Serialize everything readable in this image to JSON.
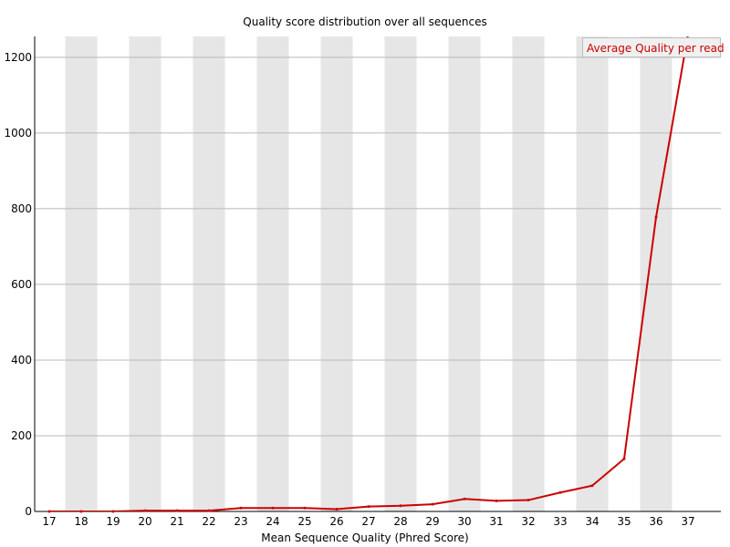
{
  "chart_data": {
    "type": "line",
    "title": "Quality score distribution over all sequences",
    "xlabel": "Mean Sequence Quality (Phred Score)",
    "ylabel": "",
    "x": [
      17,
      18,
      19,
      20,
      21,
      22,
      23,
      24,
      25,
      26,
      27,
      28,
      29,
      30,
      31,
      32,
      33,
      34,
      35,
      36,
      37
    ],
    "x_tick_labels": [
      "17",
      "18",
      "19",
      "20",
      "21",
      "22",
      "23",
      "24",
      "25",
      "26",
      "27",
      "28",
      "29",
      "30",
      "31",
      "32",
      "33",
      "34",
      "35",
      "36",
      "37"
    ],
    "y_ticks": [
      0,
      200,
      400,
      600,
      800,
      1000,
      1200
    ],
    "y_tick_labels": [
      "0",
      "200",
      "400",
      "600",
      "800",
      "1000",
      "1200"
    ],
    "ylim": [
      0,
      1255
    ],
    "series": [
      {
        "name": "Average Quality per read",
        "color": "#cc0000",
        "values": [
          0,
          0,
          0,
          2,
          2,
          2,
          9,
          9,
          9,
          6,
          13,
          15,
          19,
          33,
          28,
          30,
          50,
          68,
          139,
          778,
          1260
        ]
      }
    ],
    "grid": "horizontal",
    "alternating_bands": true,
    "band_color": "#e6e6e6",
    "legend_position": "top-right"
  }
}
